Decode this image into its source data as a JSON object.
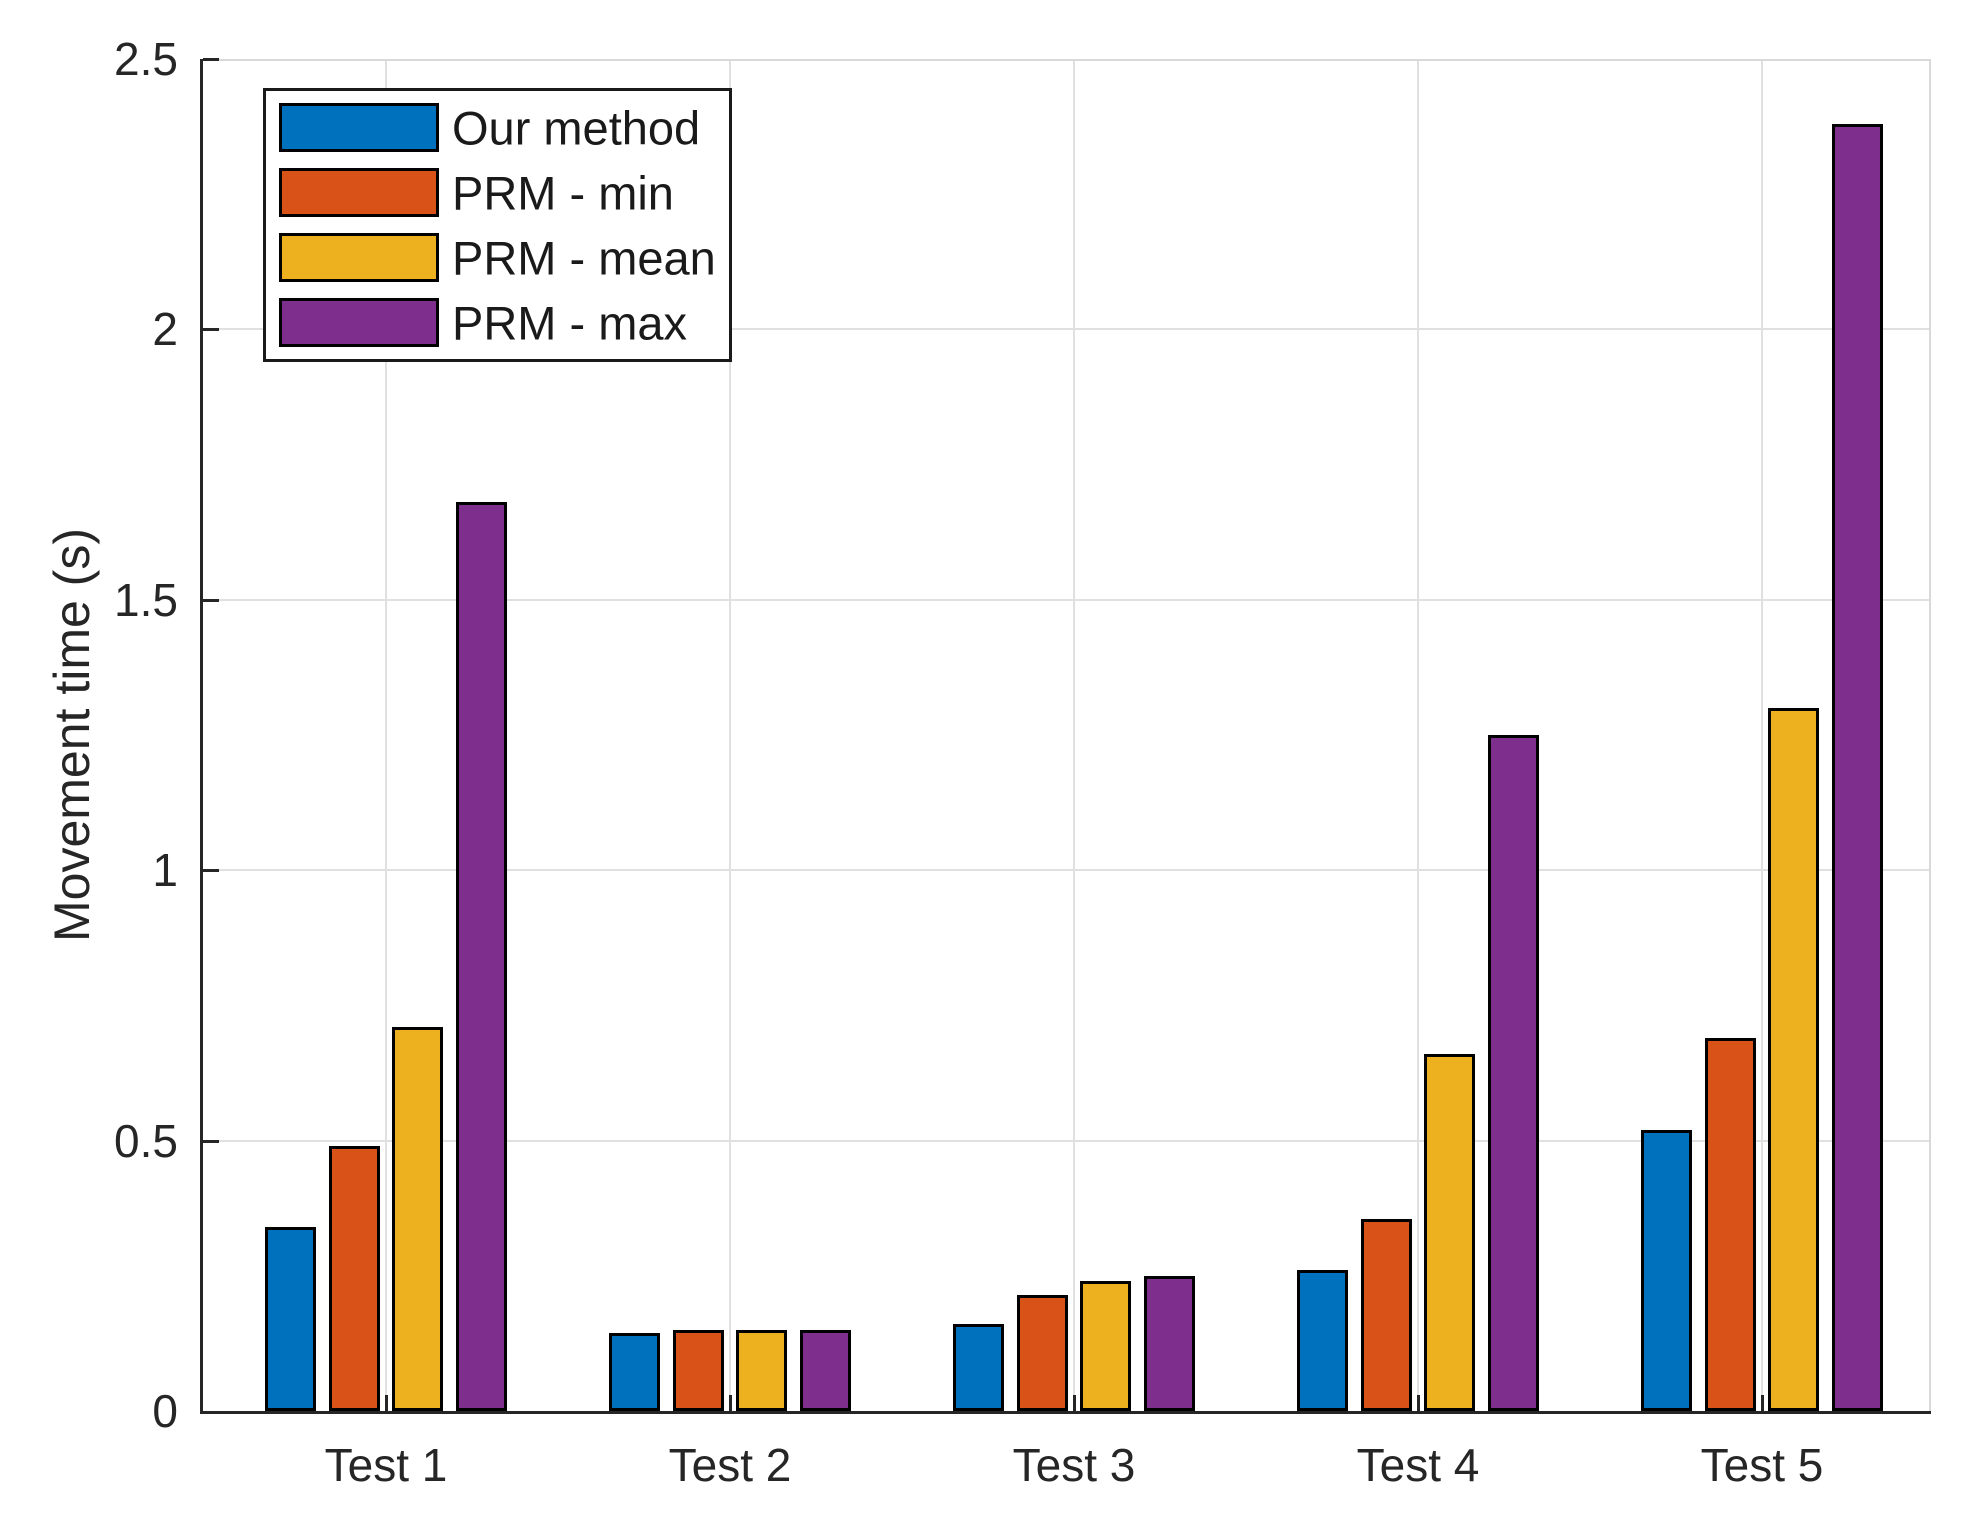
{
  "chart_data": {
    "type": "bar",
    "title": "",
    "xlabel": "",
    "ylabel": "Movement time (s)",
    "categories": [
      "Test 1",
      "Test 2",
      "Test 3",
      "Test 4",
      "Test 5"
    ],
    "series": [
      {
        "name": "Our method",
        "color": "#0072BD",
        "values": [
          0.34,
          0.145,
          0.16,
          0.26,
          0.52
        ]
      },
      {
        "name": "PRM - min",
        "color": "#D95319",
        "values": [
          0.49,
          0.15,
          0.215,
          0.355,
          0.69
        ]
      },
      {
        "name": "PRM - mean",
        "color": "#EDB120",
        "values": [
          0.71,
          0.15,
          0.24,
          0.66,
          1.3
        ]
      },
      {
        "name": "PRM - max",
        "color": "#7E2F8E",
        "values": [
          1.68,
          0.15,
          0.25,
          1.25,
          2.38
        ]
      }
    ],
    "ylim": [
      0,
      2.5
    ],
    "yticks": [
      "0",
      "0.5",
      "1",
      "1.5",
      "2",
      "2.5"
    ],
    "grid": "on",
    "legend_position": "top-left",
    "bar_edge_color": "#000000",
    "axis_color": "#262626",
    "grid_color": "#e0e0e0"
  }
}
